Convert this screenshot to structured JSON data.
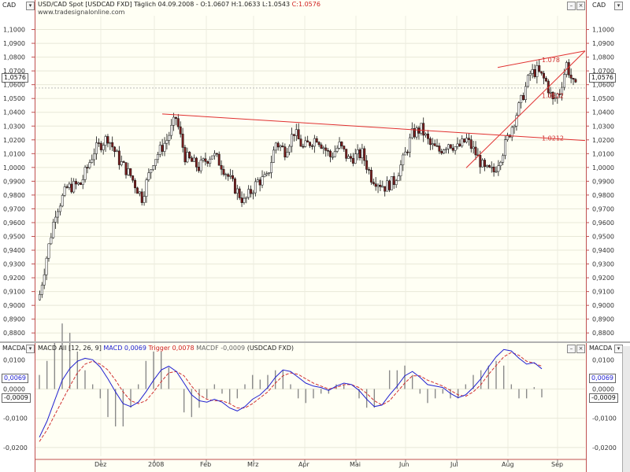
{
  "header": {
    "left_symbol": "CAD",
    "right_symbol": "CAD",
    "title_prefix": "USD/CAD Spot [USDCAD FXD]  Täglich 04.09.2008 - O:1.0607 H:1.0633 L:1.0543 ",
    "title_close": "C:1.0576",
    "source": "www.tradesignalonline.com",
    "current_price": "1,0576"
  },
  "macd_header": {
    "left_symbol": "MACDA",
    "right_symbol": "MACDA",
    "prefix": "MACD All [12, 26, 9]",
    "macd_label": "MACD 0,0069",
    "trigger_label": "Trigger 0,0078",
    "macdf_label": "MACDF -0,0009",
    "suffix": "(USDCAD FXD)",
    "macd_box": "0,0069",
    "macdf_box": "-0,0009"
  },
  "colors": {
    "bull": "#ffffff",
    "bear": "#7a1e1e",
    "wick": "#111111",
    "trendline": "#e03030",
    "macd": "#2020d0",
    "trigger": "#d03030",
    "hist": "#8a8a8a"
  },
  "chart_data": [
    {
      "type": "candlestick",
      "title": "USD/CAD Spot [USDCAD FXD] Täglich",
      "ylim": [
        0.875,
        1.11
      ],
      "y_ticks": [
        "1,1000",
        "1,0900",
        "1,0800",
        "1,0700",
        "1,0600",
        "1,0500",
        "1,0400",
        "1,0300",
        "1,0200",
        "1,0100",
        "1,0000",
        "0,9900",
        "0,9800",
        "0,9700",
        "0,9600",
        "0,9500",
        "0,9400",
        "0,9300",
        "0,9200",
        "0,9100",
        "0,9000",
        "0,8900",
        "0,8800"
      ],
      "x_ticks": [
        "Dez",
        "2008",
        "Feb",
        "Mrz",
        "Apr",
        "Mai",
        "Jun",
        "Jul",
        "Aug",
        "Sep"
      ],
      "series_knots": [
        [
          0,
          0.908
        ],
        [
          3,
          0.935
        ],
        [
          7,
          0.968
        ],
        [
          12,
          0.985
        ],
        [
          18,
          0.988
        ],
        [
          24,
          1.012
        ],
        [
          30,
          1.022
        ],
        [
          35,
          1.005
        ],
        [
          40,
          0.994
        ],
        [
          45,
          0.978
        ],
        [
          50,
          1.005
        ],
        [
          56,
          1.02
        ],
        [
          60,
          1.036
        ],
        [
          64,
          1.008
        ],
        [
          70,
          1.0
        ],
        [
          76,
          1.01
        ],
        [
          80,
          1.002
        ],
        [
          86,
          0.985
        ],
        [
          90,
          0.975
        ],
        [
          96,
          0.99
        ],
        [
          100,
          0.992
        ],
        [
          104,
          1.018
        ],
        [
          108,
          1.012
        ],
        [
          112,
          1.026
        ],
        [
          116,
          1.014
        ],
        [
          122,
          1.022
        ],
        [
          128,
          1.008
        ],
        [
          132,
          1.016
        ],
        [
          136,
          1.006
        ],
        [
          142,
          1.01
        ],
        [
          146,
          0.993
        ],
        [
          152,
          0.986
        ],
        [
          156,
          0.99
        ],
        [
          160,
          1.005
        ],
        [
          164,
          1.024
        ],
        [
          168,
          1.028
        ],
        [
          172,
          1.016
        ],
        [
          176,
          1.012
        ],
        [
          180,
          1.018
        ],
        [
          184,
          1.014
        ],
        [
          188,
          1.02
        ],
        [
          192,
          1.01
        ],
        [
          196,
          0.998
        ],
        [
          200,
          0.997
        ],
        [
          204,
          1.012
        ],
        [
          208,
          1.03
        ],
        [
          212,
          1.048
        ],
        [
          216,
          1.068
        ],
        [
          219,
          1.07
        ],
        [
          223,
          1.062
        ],
        [
          226,
          1.048
        ],
        [
          229,
          1.055
        ],
        [
          232,
          1.075
        ],
        [
          235,
          1.06
        ],
        [
          236,
          1.0576
        ]
      ],
      "annotations": [
        {
          "text": "1.078",
          "value": 1.078
        },
        {
          "text": "1.0522",
          "value": 1.0522
        },
        {
          "text": "1.0212",
          "value": 1.0212
        }
      ]
    },
    {
      "type": "line",
      "title": "MACD All [12, 26, 9]",
      "ylim": [
        -0.023,
        0.0125
      ],
      "y_ticks": [
        "0,0100",
        "0,0000",
        "-0,0100",
        "-0,0200"
      ],
      "series": [
        {
          "name": "MACD",
          "values": [
            -0.0165,
            -0.011,
            -0.004,
            0.003,
            0.007,
            0.0095,
            0.0105,
            0.01,
            0.0075,
            0.0035,
            -0.001,
            -0.005,
            -0.006,
            -0.0045,
            -0.001,
            0.003,
            0.0065,
            0.0078,
            0.006,
            0.002,
            -0.002,
            -0.004,
            -0.0045,
            -0.0035,
            -0.0045,
            -0.0065,
            -0.0075,
            -0.006,
            -0.0035,
            -0.002,
            0.0005,
            0.004,
            0.0065,
            0.006,
            0.004,
            0.002,
            0.001,
            0.0005,
            -0.0005,
            0.001,
            0.002,
            0.0015,
            -0.0005,
            -0.0035,
            -0.006,
            -0.0055,
            -0.002,
            0.001,
            0.0045,
            0.006,
            0.004,
            0.0015,
            0.001,
            0.0005,
            -0.0015,
            -0.003,
            -0.002,
            0.0005,
            0.0035,
            0.0075,
            0.011,
            0.0135,
            0.013,
            0.0105,
            0.0085,
            0.009,
            0.0069
          ]
        },
        {
          "name": "Trigger",
          "values": [
            -0.018,
            -0.014,
            -0.009,
            -0.004,
            0.001,
            0.0055,
            0.0085,
            0.0095,
            0.0085,
            0.0065,
            0.003,
            -0.001,
            -0.004,
            -0.005,
            -0.004,
            -0.001,
            0.0025,
            0.0055,
            0.006,
            0.0045,
            0.001,
            -0.002,
            -0.0035,
            -0.004,
            -0.004,
            -0.005,
            -0.0065,
            -0.0065,
            -0.005,
            -0.003,
            -0.001,
            0.002,
            0.0045,
            0.0055,
            0.005,
            0.0035,
            0.002,
            0.001,
            0.0,
            0.0005,
            0.0015,
            0.0015,
            0.0005,
            -0.0015,
            -0.004,
            -0.0055,
            -0.004,
            -0.001,
            0.002,
            0.0045,
            0.0045,
            0.003,
            0.002,
            0.001,
            -0.0005,
            -0.002,
            -0.0025,
            -0.001,
            0.0015,
            0.005,
            0.008,
            0.011,
            0.0125,
            0.0115,
            0.0095,
            0.0088,
            0.0078
          ]
        }
      ]
    }
  ]
}
